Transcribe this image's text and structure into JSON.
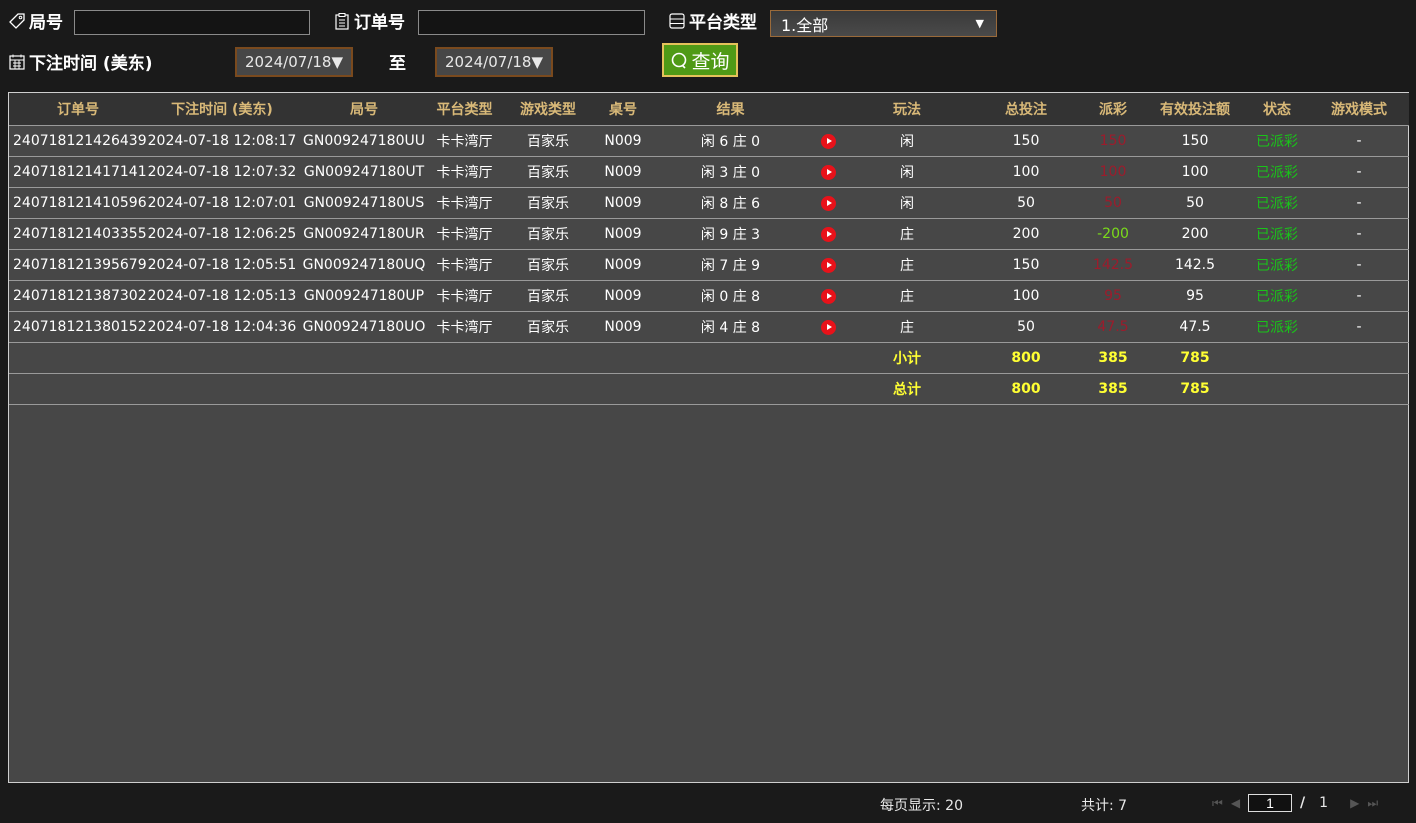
{
  "filters": {
    "round_label": "局号",
    "round_value": "",
    "order_label": "订单号",
    "order_value": "",
    "platform_label": "平台类型",
    "platform_selected": "1.全部",
    "time_label": "下注时间 (美东)",
    "date_from": "2024/07/18▼",
    "to_label": "至",
    "date_to": "2024/07/18▼",
    "query_label": "查询"
  },
  "table": {
    "headers": [
      "订单号",
      "下注时间 (美东)",
      "局号",
      "平台类型",
      "游戏类型",
      "桌号",
      "结果",
      "",
      "玩法",
      "总投注",
      "派彩",
      "有效投注额",
      "状态",
      "游戏模式"
    ],
    "rows": [
      {
        "order": "240718121426439",
        "time": "2024-07-18 12:08:17",
        "round": "GN009247180UU",
        "platform": "卡卡湾厅",
        "game": "百家乐",
        "table": "N009",
        "result": "闲 6 庄 0",
        "play": "闲",
        "bet": "150",
        "payout": "150",
        "payout_type": "red",
        "valid": "150",
        "status": "已派彩",
        "mode": "-"
      },
      {
        "order": "240718121417141",
        "time": "2024-07-18 12:07:32",
        "round": "GN009247180UT",
        "platform": "卡卡湾厅",
        "game": "百家乐",
        "table": "N009",
        "result": "闲 3 庄 0",
        "play": "闲",
        "bet": "100",
        "payout": "100",
        "payout_type": "red",
        "valid": "100",
        "status": "已派彩",
        "mode": "-"
      },
      {
        "order": "240718121410596",
        "time": "2024-07-18 12:07:01",
        "round": "GN009247180US",
        "platform": "卡卡湾厅",
        "game": "百家乐",
        "table": "N009",
        "result": "闲 8 庄 6",
        "play": "闲",
        "bet": "50",
        "payout": "50",
        "payout_type": "red",
        "valid": "50",
        "status": "已派彩",
        "mode": "-"
      },
      {
        "order": "240718121403355",
        "time": "2024-07-18 12:06:25",
        "round": "GN009247180UR",
        "platform": "卡卡湾厅",
        "game": "百家乐",
        "table": "N009",
        "result": "闲 9 庄 3",
        "play": "庄",
        "bet": "200",
        "payout": "-200",
        "payout_type": "green",
        "valid": "200",
        "status": "已派彩",
        "mode": "-"
      },
      {
        "order": "240718121395679",
        "time": "2024-07-18 12:05:51",
        "round": "GN009247180UQ",
        "platform": "卡卡湾厅",
        "game": "百家乐",
        "table": "N009",
        "result": "闲 7 庄 9",
        "play": "庄",
        "bet": "150",
        "payout": "142.5",
        "payout_type": "red",
        "valid": "142.5",
        "status": "已派彩",
        "mode": "-"
      },
      {
        "order": "240718121387302",
        "time": "2024-07-18 12:05:13",
        "round": "GN009247180UP",
        "platform": "卡卡湾厅",
        "game": "百家乐",
        "table": "N009",
        "result": "闲 0 庄 8",
        "play": "庄",
        "bet": "100",
        "payout": "95",
        "payout_type": "red",
        "valid": "95",
        "status": "已派彩",
        "mode": "-"
      },
      {
        "order": "240718121380152",
        "time": "2024-07-18 12:04:36",
        "round": "GN009247180UO",
        "platform": "卡卡湾厅",
        "game": "百家乐",
        "table": "N009",
        "result": "闲 4 庄 8",
        "play": "庄",
        "bet": "50",
        "payout": "47.5",
        "payout_type": "red",
        "valid": "47.5",
        "status": "已派彩",
        "mode": "-"
      }
    ],
    "subtotal": {
      "label": "小计",
      "bet": "800",
      "payout": "385",
      "valid": "785"
    },
    "total": {
      "label": "总计",
      "bet": "800",
      "payout": "385",
      "valid": "785"
    }
  },
  "footer": {
    "per_page": "每页显示: 20",
    "count": "共计: 7",
    "page": "1",
    "sep": "/",
    "pages": "1"
  },
  "colors": {
    "header_text": "#d9b978",
    "payout_win": "#9c1c2c",
    "payout_loss": "#7bdc1a",
    "status": "#19c419",
    "summary": "#ffff33",
    "query_button": "#4f9a16"
  }
}
